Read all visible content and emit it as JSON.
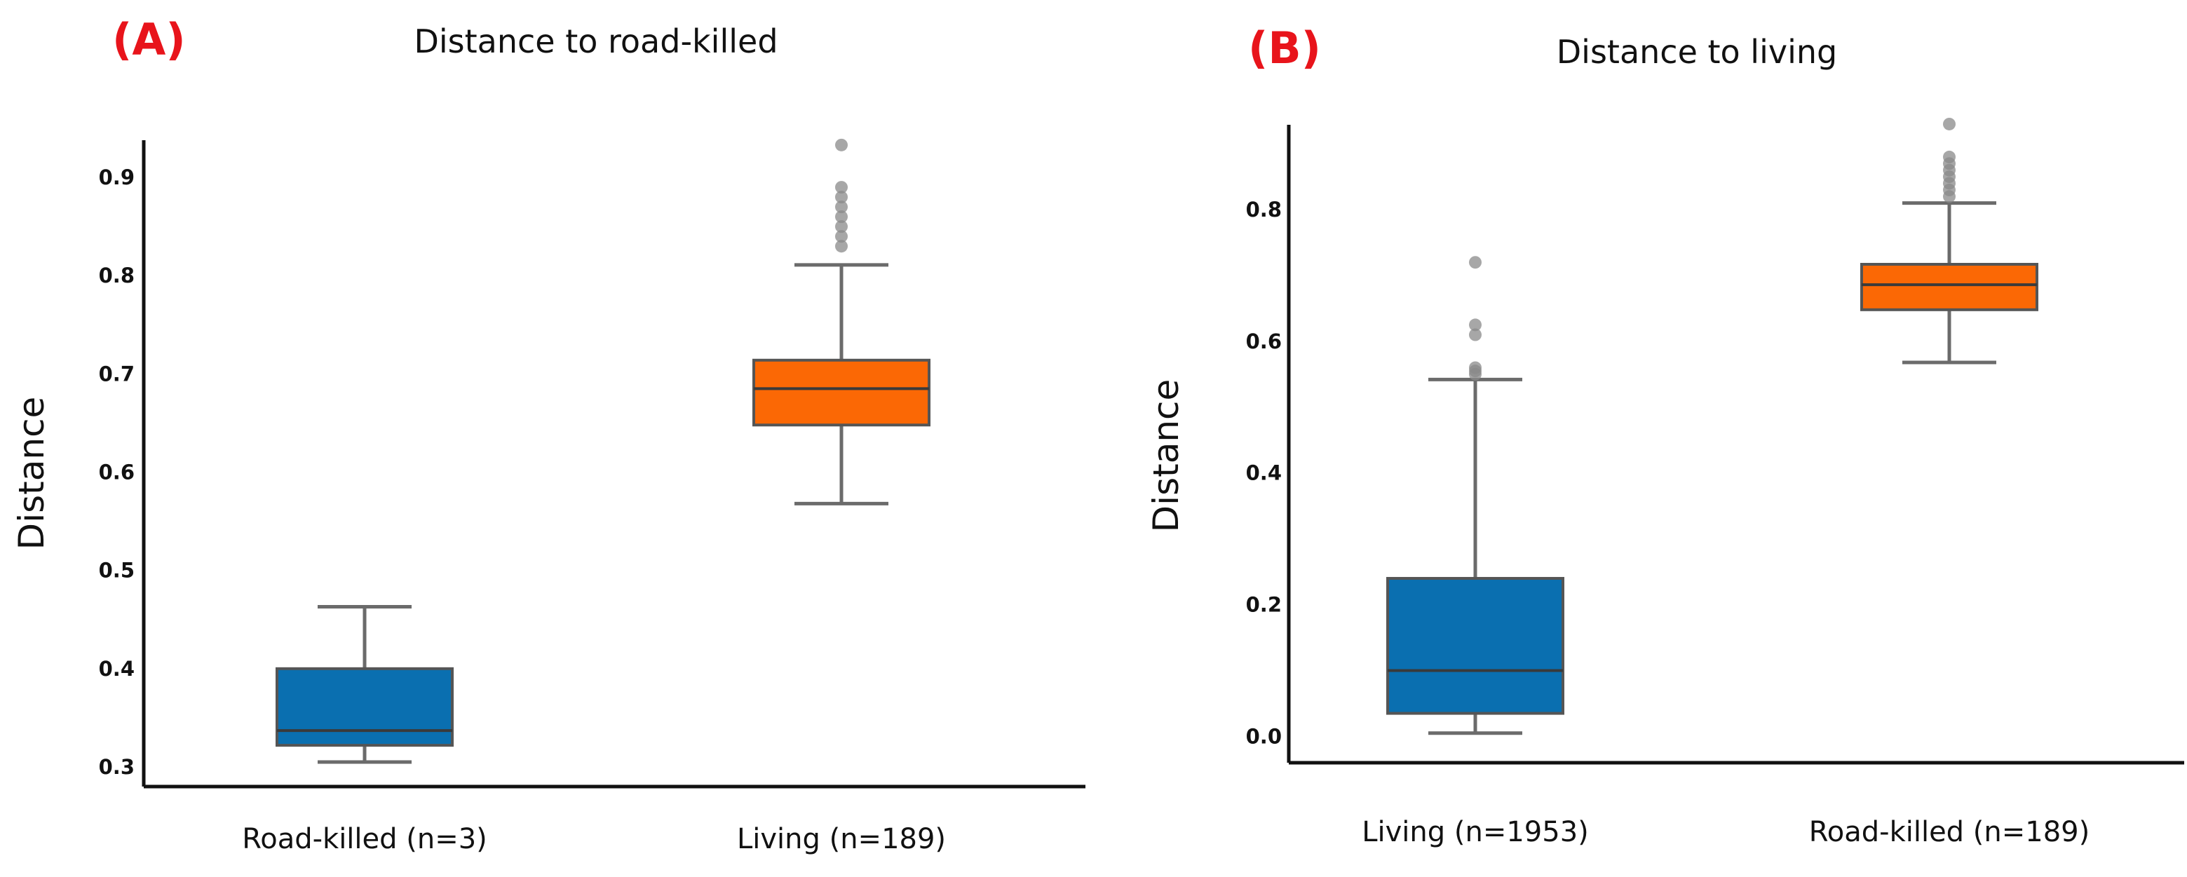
{
  "chart_data": [
    {
      "type": "box",
      "panel_label": "(A)",
      "title": "Distance to road-killed",
      "xlabel": "",
      "ylabel": "Distance",
      "ylim": [
        0.28,
        0.97
      ],
      "yticks": [
        0.3,
        0.4,
        0.5,
        0.6,
        0.7,
        0.8,
        0.9
      ],
      "grid": false,
      "categories": [
        "Road-killed (n=3)",
        "Living (n=189)"
      ],
      "boxes": [
        {
          "category": "Road-killed (n=3)",
          "color": "#0a6fb0",
          "whisker_low": 0.305,
          "q1": 0.322,
          "median": 0.337,
          "q3": 0.4,
          "whisker_high": 0.463,
          "outliers": []
        },
        {
          "category": "Living (n=189)",
          "color": "#fb6805",
          "whisker_low": 0.568,
          "q1": 0.648,
          "median": 0.685,
          "q3": 0.714,
          "whisker_high": 0.811,
          "outliers": [
            0.83,
            0.84,
            0.85,
            0.86,
            0.87,
            0.88,
            0.89,
            0.933
          ]
        }
      ]
    },
    {
      "type": "box",
      "panel_label": "(B)",
      "title": "Distance to living",
      "xlabel": "",
      "ylabel": "Distance",
      "ylim": [
        -0.04,
        0.98
      ],
      "yticks": [
        0.0,
        0.2,
        0.4,
        0.6,
        0.8
      ],
      "grid": false,
      "categories": [
        "Living (n=1953)",
        "Road-killed (n=189)"
      ],
      "boxes": [
        {
          "category": "Living (n=1953)",
          "color": "#0a6fb0",
          "whisker_low": 0.005,
          "q1": 0.035,
          "median": 0.1,
          "q3": 0.24,
          "whisker_high": 0.542,
          "outliers": [
            0.55,
            0.555,
            0.56,
            0.61,
            0.625,
            0.72
          ]
        },
        {
          "category": "Road-killed (n=189)",
          "color": "#fb6805",
          "whisker_low": 0.568,
          "q1": 0.648,
          "median": 0.686,
          "q3": 0.717,
          "whisker_high": 0.81,
          "outliers": [
            0.82,
            0.83,
            0.84,
            0.85,
            0.86,
            0.87,
            0.88,
            0.93
          ]
        }
      ]
    }
  ]
}
